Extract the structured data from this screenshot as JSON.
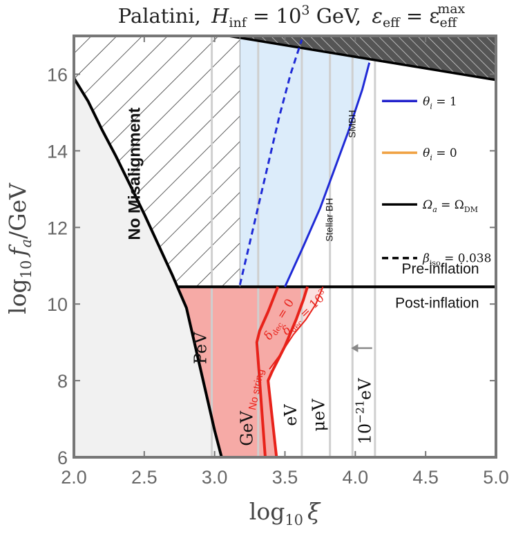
{
  "chart_data": {
    "type": "line",
    "title": "Palatini,  H_inf = 10^3 GeV,  ε_eff = ε_eff^max",
    "title_parts": {
      "prefix": "Palatini,",
      "H": "H",
      "H_sub": "inf",
      "H_eq": " = 10",
      "H_exp": "3",
      "H_unit": " GeV,",
      "eps": "ε",
      "eps_sub": "eff",
      "eps_eq": " = ε",
      "eps_max_sub": "eff",
      "eps_max_sup": "max"
    },
    "xlabel": "log10 ξ",
    "xlabel_parts": {
      "log": "log",
      "sub": "10",
      "var": "ξ"
    },
    "ylabel": "log10 f_a/GeV",
    "ylabel_parts": {
      "log": "log",
      "sub": "10",
      "f": "f",
      "f_sub": "a",
      "unit": "/GeV"
    },
    "xlim": [
      2.0,
      5.0
    ],
    "ylim": [
      6,
      17
    ],
    "x_ticks": [
      2.0,
      2.5,
      3.0,
      3.5,
      4.0,
      4.5,
      5.0
    ],
    "x_tick_labels": [
      "2.0",
      "2.5",
      "3.0",
      "3.5",
      "4.0",
      "4.5",
      "5.0"
    ],
    "y_ticks": [
      6,
      8,
      10,
      12,
      14,
      16
    ],
    "y_tick_labels": [
      "6",
      "8",
      "10",
      "12",
      "14",
      "16"
    ],
    "grid": false,
    "curves": {
      "excluded_gray_boundary": [
        [
          2.0,
          15.9
        ],
        [
          2.1,
          15.3
        ],
        [
          2.2,
          14.55
        ],
        [
          2.3,
          13.85
        ],
        [
          2.4,
          13.1
        ],
        [
          2.5,
          12.35
        ],
        [
          2.6,
          11.55
        ],
        [
          2.7,
          10.75
        ],
        [
          2.8,
          9.9
        ],
        [
          2.9,
          8.3
        ],
        [
          3.0,
          6.7
        ],
        [
          3.05,
          6.0
        ]
      ],
      "top_excluded_boundary": [
        [
          3.1,
          17.0
        ],
        [
          5.0,
          15.85
        ]
      ],
      "pre_post_boundary_y": 10.45,
      "misalignment_left_x": 2.73,
      "misalignment_right_x": 3.18,
      "blue_region_boundary": [
        [
          3.18,
          17.0
        ],
        [
          4.1,
          17.0
        ],
        [
          4.1,
          16.3
        ],
        [
          4.05,
          15.6
        ],
        [
          3.95,
          14.5
        ],
        [
          3.85,
          13.5
        ],
        [
          3.75,
          12.5
        ],
        [
          3.63,
          11.5
        ],
        [
          3.5,
          10.45
        ],
        [
          3.18,
          10.45
        ]
      ],
      "blue_theta1_line": [
        [
          3.5,
          10.45
        ],
        [
          3.63,
          11.5
        ],
        [
          3.75,
          12.5
        ],
        [
          3.85,
          13.5
        ],
        [
          3.95,
          14.5
        ],
        [
          4.05,
          15.6
        ],
        [
          4.1,
          16.3
        ]
      ],
      "beta_iso_dashed": [
        [
          3.18,
          10.5
        ],
        [
          3.25,
          11.6
        ],
        [
          3.32,
          12.7
        ],
        [
          3.39,
          13.8
        ],
        [
          3.46,
          14.9
        ],
        [
          3.54,
          16.0
        ],
        [
          3.62,
          16.9
        ]
      ],
      "red_no_string": [
        [
          3.36,
          6.0
        ],
        [
          3.3,
          9.0
        ],
        [
          3.32,
          9.3
        ],
        [
          3.38,
          9.8
        ],
        [
          3.45,
          10.45
        ]
      ],
      "red_delta_0": [
        [
          3.44,
          6.0
        ],
        [
          3.38,
          8.0
        ],
        [
          3.41,
          8.25
        ],
        [
          3.5,
          8.9
        ],
        [
          3.58,
          9.6
        ],
        [
          3.63,
          10.1
        ],
        [
          3.66,
          10.45
        ]
      ],
      "red_delta_1e3": [
        [
          3.39,
          8.3
        ],
        [
          3.47,
          8.7
        ],
        [
          3.56,
          9.2
        ],
        [
          3.65,
          9.6
        ],
        [
          3.72,
          10.0
        ],
        [
          3.77,
          10.45
        ]
      ],
      "vertical_mass_lines_x": [
        2.98,
        3.31,
        3.62,
        3.82,
        3.98,
        4.14
      ]
    },
    "region_labels": {
      "no_misalignment": "No Misalignment",
      "pre_inflation": "Pre-inflation",
      "post_inflation": "Post-inflation",
      "pev": "PeV",
      "gev": "GeV",
      "ev": "eV",
      "muev": "μeV",
      "ev21_base": "10",
      "ev21_exp": "−21",
      "ev21_unit": "eV",
      "no_string": "No string",
      "delta_dec_0": "δ",
      "delta_dec_0_sub": "dec",
      "delta_dec_0_rhs": " = 0",
      "delta_dec_1e3": "δ",
      "delta_dec_1e3_sub": "dec",
      "delta_dec_1e3_rhs": " = 10",
      "delta_dec_1e3_exp": "3",
      "stellar_bh": "Stellar BH",
      "smbh": "SMBH"
    },
    "legend": {
      "placement": "top-right",
      "entries": [
        {
          "name": "θ",
          "sub": "i",
          "rhs": " = 1",
          "color": "#2222cc",
          "style": "solid"
        },
        {
          "name": "θ",
          "sub": "i",
          "rhs": " = 0",
          "color": "#f0a040",
          "style": "solid"
        },
        {
          "name": "Ω",
          "sub": "a",
          "rhs": " = Ω",
          "rhs_sub": "DM",
          "color": "#000000",
          "style": "solid"
        },
        {
          "name": "β",
          "sub": "iso",
          "rhs": " = 0.038",
          "color": "#000000",
          "style": "dashed"
        }
      ]
    },
    "colors": {
      "gray_region": "#f1f1f1",
      "blue_region": "#dcecfa",
      "blue_line": "#1f2ad6",
      "red_region": "#f6aaa6",
      "red_light": "#fce1df",
      "red_line": "#e8221a",
      "hatch_dark": "#555555",
      "vertical_lines": "#cfcfcf",
      "frame": "#777777"
    }
  }
}
